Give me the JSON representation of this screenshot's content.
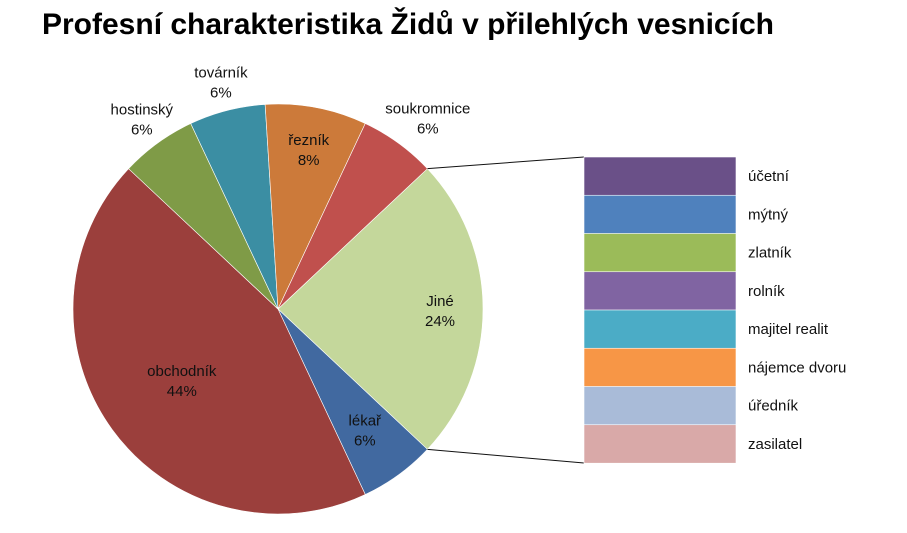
{
  "chart_data": {
    "type": "pie",
    "title": "Profesní charakteristika Židů v přilehlých vesnicích",
    "slices": [
      {
        "label": "Jiné",
        "value": 24,
        "value_label": "24%",
        "color": "#c4d79b"
      },
      {
        "label": "lékař",
        "value": 6,
        "value_label": "6%",
        "color": "#4169a0"
      },
      {
        "label": "obchodník",
        "value": 44,
        "value_label": "44%",
        "color": "#9b3f3c"
      },
      {
        "label": "hostinský",
        "value": 6,
        "value_label": "6%",
        "color": "#7f9b47"
      },
      {
        "label": "továrník",
        "value": 6,
        "value_label": "6%",
        "color": "#3b8ea3"
      },
      {
        "label": "řezník",
        "value": 8,
        "value_label": "8%",
        "color": "#cc7a3a"
      },
      {
        "label": "soukromnice",
        "value": 6,
        "value_label": "6%",
        "color": "#c0504d"
      }
    ],
    "breakdown": {
      "of": "Jiné",
      "items": [
        {
          "label": "účetní",
          "color": "#6a5088"
        },
        {
          "label": "mýtný",
          "color": "#4f81bd"
        },
        {
          "label": "zlatník",
          "color": "#9bbb59"
        },
        {
          "label": "rolník",
          "color": "#8064a2"
        },
        {
          "label": "majitel realit",
          "color": "#4bacc6"
        },
        {
          "label": "nájemce dvoru",
          "color": "#f79646"
        },
        {
          "label": "úředník",
          "color": "#a9bbd8"
        },
        {
          "label": "zasilatel",
          "color": "#d9a9a8"
        }
      ]
    }
  }
}
